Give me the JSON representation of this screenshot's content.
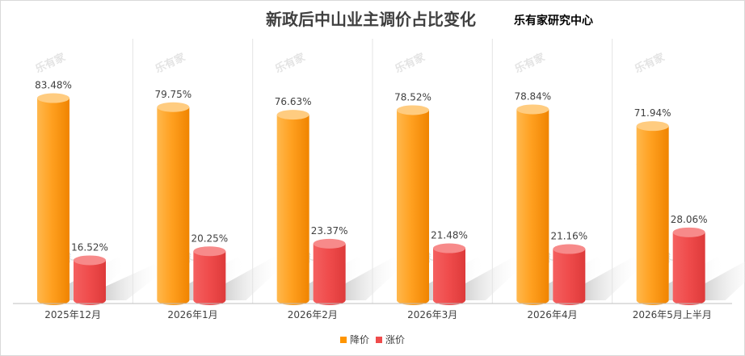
{
  "title": "新政后中山业主调价占比变化",
  "subtitle": "乐有家研究中心",
  "watermark": "乐有家",
  "chart_data": {
    "type": "bar",
    "categories": [
      "2025年12月",
      "2026年1月",
      "2026年2月",
      "2026年3月",
      "2026年4月",
      "2026年5月上半月"
    ],
    "series": [
      {
        "name": "降价",
        "values": [
          83.48,
          79.75,
          76.63,
          78.52,
          78.84,
          71.94
        ],
        "labels": [
          "83.48%",
          "79.75%",
          "76.63%",
          "78.52%",
          "78.84%",
          "71.94%"
        ],
        "color": "#FF9500"
      },
      {
        "name": "涨价",
        "values": [
          16.52,
          20.25,
          23.37,
          21.48,
          21.16,
          28.06
        ],
        "labels": [
          "16.52%",
          "20.25%",
          "23.37%",
          "21.48%",
          "21.16%",
          "28.06%"
        ],
        "color": "#EF4B4B"
      }
    ],
    "ylim": [
      0,
      100
    ],
    "grid": false,
    "legend": "bottom"
  }
}
